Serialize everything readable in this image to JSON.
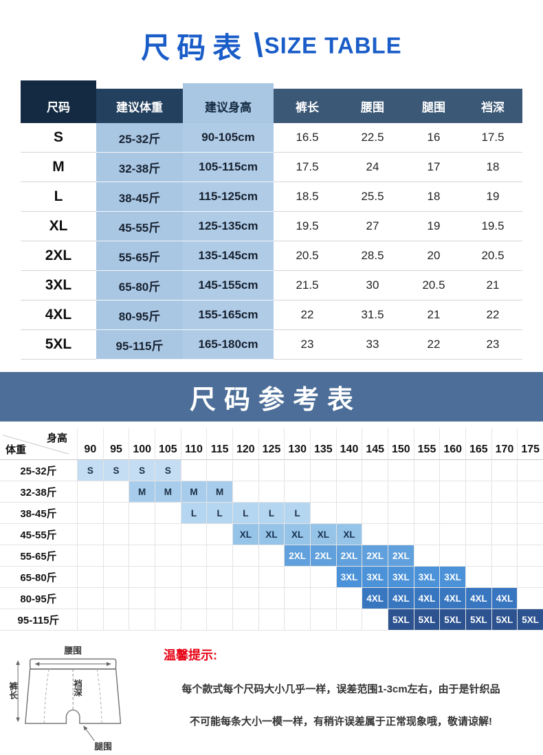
{
  "header": {
    "title_cn": "尺码表",
    "divider": "\\",
    "title_en": "SIZE TABLE",
    "accent_color": "#1a5dc8"
  },
  "size_table": {
    "headers": [
      "尺码",
      "建议体重",
      "建议身高",
      "裤长",
      "腰围",
      "腿围",
      "裆深"
    ],
    "rows": [
      {
        "size": "S",
        "weight": "25-32斤",
        "height": "90-105cm",
        "length": "16.5",
        "waist": "22.5",
        "leg": "16",
        "crotch": "17.5"
      },
      {
        "size": "M",
        "weight": "32-38斤",
        "height": "105-115cm",
        "length": "17.5",
        "waist": "24",
        "leg": "17",
        "crotch": "18"
      },
      {
        "size": "L",
        "weight": "38-45斤",
        "height": "115-125cm",
        "length": "18.5",
        "waist": "25.5",
        "leg": "18",
        "crotch": "19"
      },
      {
        "size": "XL",
        "weight": "45-55斤",
        "height": "125-135cm",
        "length": "19.5",
        "waist": "27",
        "leg": "19",
        "crotch": "19.5"
      },
      {
        "size": "2XL",
        "weight": "55-65斤",
        "height": "135-145cm",
        "length": "20.5",
        "waist": "28.5",
        "leg": "20",
        "crotch": "20.5"
      },
      {
        "size": "3XL",
        "weight": "65-80斤",
        "height": "145-155cm",
        "length": "21.5",
        "waist": "30",
        "leg": "20.5",
        "crotch": "21"
      },
      {
        "size": "4XL",
        "weight": "80-95斤",
        "height": "155-165cm",
        "length": "22",
        "waist": "31.5",
        "leg": "21",
        "crotch": "22"
      },
      {
        "size": "5XL",
        "weight": "95-115斤",
        "height": "165-180cm",
        "length": "23",
        "waist": "33",
        "leg": "22",
        "crotch": "23"
      }
    ]
  },
  "reference": {
    "title": "尺码参考表",
    "corner": {
      "top": "身高",
      "bottom": "体重"
    },
    "columns": [
      "90",
      "95",
      "100",
      "105",
      "110",
      "115",
      "120",
      "125",
      "130",
      "135",
      "140",
      "145",
      "150",
      "155",
      "160",
      "165",
      "170",
      "175"
    ],
    "rows": [
      {
        "label": "25-32斤",
        "size": "S",
        "start": 0,
        "count": 4,
        "bg": "#c4ddf3",
        "fg": "#1b2e45"
      },
      {
        "label": "32-38斤",
        "size": "M",
        "start": 2,
        "count": 4,
        "bg": "#a8cdec",
        "fg": "#1b2e45"
      },
      {
        "label": "38-45斤",
        "size": "L",
        "start": 4,
        "count": 5,
        "bg": "#b5d6f0",
        "fg": "#1b2e45"
      },
      {
        "label": "45-55斤",
        "size": "XL",
        "start": 6,
        "count": 5,
        "bg": "#96c4e9",
        "fg": "#16304e"
      },
      {
        "label": "55-65斤",
        "size": "2XL",
        "start": 8,
        "count": 5,
        "bg": "#60a0dc",
        "fg": "#ffffff"
      },
      {
        "label": "65-80斤",
        "size": "3XL",
        "start": 10,
        "count": 5,
        "bg": "#4b92d8",
        "fg": "#ffffff"
      },
      {
        "label": "80-95斤",
        "size": "4XL",
        "start": 11,
        "count": 6,
        "bg": "#3876c0",
        "fg": "#ffffff"
      },
      {
        "label": "95-115斤",
        "size": "5XL",
        "start": 12,
        "count": 6,
        "bg": "#2c528f",
        "fg": "#ffffff"
      }
    ]
  },
  "diagram": {
    "waist": "腰围",
    "length": "裤长",
    "crotch": "裆深",
    "leg": "腿围"
  },
  "tips": {
    "title": "温馨提示:",
    "line1": "每个款式每个尺码大小几乎一样，误差范围1-3cm左右，由于是针织品",
    "line2": "不可能每条大小一模一样，有稍许误差属于正常现象哦，敬请谅解!"
  }
}
